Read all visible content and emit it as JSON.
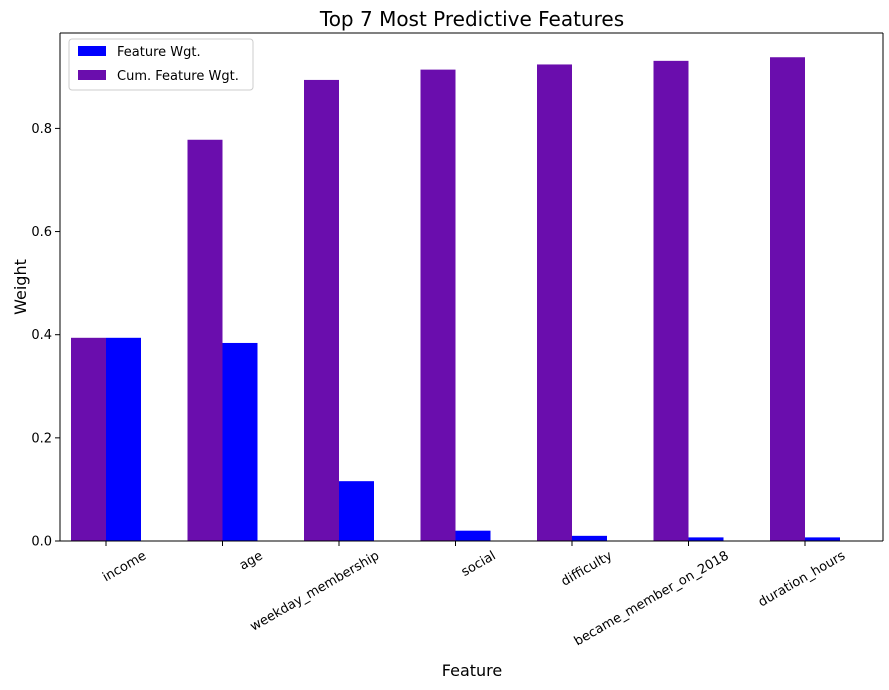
{
  "chart_data": {
    "type": "bar",
    "title": "Top 7 Most Predictive Features",
    "xlabel": "Feature",
    "ylabel": "Weight",
    "categories": [
      "income",
      "age",
      "weekday_membership",
      "social",
      "difficulty",
      "became_member_on_2018",
      "duration_hours"
    ],
    "series": [
      {
        "name": "Feature Wgt.",
        "color": "#0000ff",
        "values": [
          0.394,
          0.384,
          0.116,
          0.02,
          0.01,
          0.007,
          0.007
        ]
      },
      {
        "name": "Cum. Feature Wgt.",
        "color": "#6a0dad",
        "values": [
          0.394,
          0.778,
          0.894,
          0.914,
          0.924,
          0.931,
          0.938
        ]
      }
    ],
    "ylim": [
      0,
      0.985
    ],
    "yticks": [
      0.0,
      0.2,
      0.4,
      0.6,
      0.8
    ],
    "ytick_labels": [
      "0.0",
      "0.2",
      "0.4",
      "0.6",
      "0.8"
    ],
    "xtick_rotation": 30,
    "grid": false,
    "legend_position": "upper left"
  }
}
